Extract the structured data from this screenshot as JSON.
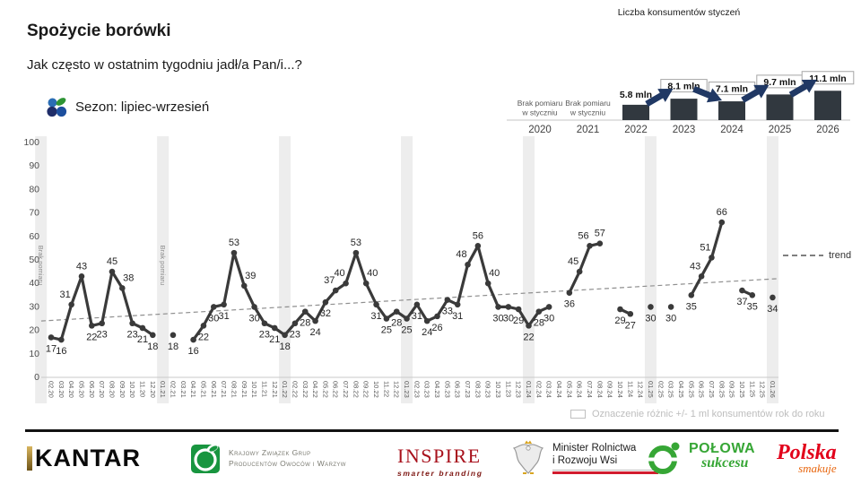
{
  "page": {
    "title": "Spożycie borówki",
    "subtitle": "Jak często w ostatnim tygodniu jadł/a Pan/i...?"
  },
  "season_legend": {
    "label": "Sezon: lipiec-wrzesień",
    "icon": "blueberry-icon"
  },
  "note": "Oznaczenie różnic +/- 1 ml konsumentów rok do roku",
  "colors": {
    "line": "#3a3a3a",
    "label": "#262626",
    "axis": "#c9c9c9",
    "tick_text": "#4d4d4d",
    "band": "#ededed",
    "band_note": "#8c8c8c",
    "trend": "#8f8f8f",
    "bar": "#31383f",
    "arrow": "#203864",
    "box_border": "#a6a6a6",
    "mini_note": "#595959",
    "blueberry_blue": "#2a6db4",
    "blueberry_navy": "#1f2d69",
    "blueberry_mid": "#1d4f9e",
    "leaf_green": "#2e9434"
  },
  "chart_data": [
    {
      "type": "line",
      "title": "",
      "x": [
        "02.20",
        "03.20",
        "04.20",
        "05.20",
        "06.20",
        "07.20",
        "08.20",
        "09.20",
        "10.20",
        "11.20",
        "12.20",
        "01.21",
        "02.21",
        "03.21",
        "04.21",
        "05.21",
        "06.21",
        "07.21",
        "08.21",
        "09.21",
        "10.21",
        "11.21",
        "12.21",
        "01.22",
        "02.22",
        "03.22",
        "04.22",
        "05.22",
        "06.22",
        "07.22",
        "08.22",
        "09.22",
        "10.22",
        "11.22",
        "12.22",
        "01.23",
        "02.23",
        "03.23",
        "04.23",
        "05.23",
        "06.23",
        "07.23",
        "08.23",
        "09.23",
        "10.23",
        "11.23",
        "12.23",
        "01.24",
        "02.24",
        "03.24",
        "04.24",
        "05.24",
        "06.24",
        "07.24",
        "08.24",
        "09.24",
        "10.24",
        "11.24",
        "12.24",
        "01.25",
        "02.25",
        "03.25",
        "04.25",
        "05.25",
        "06.25",
        "07.25",
        "08.25",
        "09.25",
        "10.25",
        "11.25",
        "12.25",
        "01.26"
      ],
      "values": [
        17,
        16,
        31,
        43,
        22,
        23,
        45,
        38,
        23,
        21,
        18,
        null,
        18,
        null,
        16,
        22,
        30,
        31,
        53,
        39,
        30,
        23,
        21,
        18,
        23,
        28,
        24,
        32,
        37,
        40,
        53,
        40,
        31,
        25,
        28,
        25,
        31,
        24,
        26,
        33,
        31,
        48,
        56,
        40,
        30,
        30,
        29,
        22,
        28,
        30,
        null,
        36,
        45,
        56,
        57,
        null,
        29,
        27,
        null,
        30,
        null,
        30,
        null,
        35,
        43,
        51,
        66,
        null,
        37,
        35,
        null,
        34
      ],
      "ylim": [
        0,
        100
      ],
      "y_ticks": [
        100,
        90,
        80,
        70,
        60,
        50,
        40,
        30,
        20,
        10,
        0
      ],
      "january_bands": [
        "01.20",
        "01.21",
        "01.22",
        "01.23",
        "01.24",
        "01.25",
        "01.26"
      ],
      "no_measure_columns": [
        "01.20",
        "01.21"
      ],
      "no_measure_note": "Brak pomiaru",
      "trend": {
        "label": "trend",
        "start_value": 24,
        "end_value": 42
      }
    },
    {
      "type": "bar",
      "title": "Liczba konsumentów styczeń",
      "categories": [
        "2020",
        "2021",
        "2022",
        "2023",
        "2024",
        "2025",
        "2026"
      ],
      "values": [
        null,
        null,
        5.8,
        8.1,
        7.1,
        9.7,
        11.1
      ],
      "value_labels": [
        "",
        "",
        "5.8 mln",
        "8.1 mln",
        "7.1 mln",
        "9.7 mln",
        "11.1 mln"
      ],
      "boxed": [
        false,
        false,
        false,
        true,
        true,
        true,
        true
      ],
      "no_measure_note": "Brak pomiaru w styczniu",
      "arrows": [
        "up",
        "down",
        "up",
        "up"
      ]
    }
  ],
  "footer": {
    "kantar": {
      "name": "KANTAR"
    },
    "kzg": {
      "line1": "Krajowy Związek Grup",
      "line2": "Producentów Owoców i Warzyw"
    },
    "inspire": {
      "name": "INSPIRE",
      "tagline": "smarter branding"
    },
    "minister": {
      "line1": "Minister Rolnictwa",
      "line2": "i Rozwoju Wsi"
    },
    "polowa": {
      "name": "POŁOWA",
      "sub": "sukcesu"
    },
    "polska": {
      "name": "Polska",
      "sub": "smakuje"
    }
  }
}
